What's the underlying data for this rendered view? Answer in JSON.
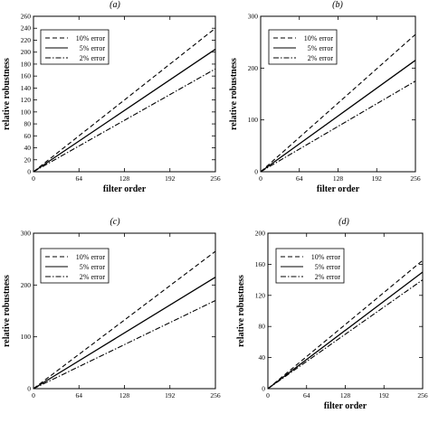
{
  "chart_data": [
    {
      "panel_label": "(a)",
      "type": "line",
      "xlabel": "filter order",
      "ylabel": "relative robustness",
      "xlim": [
        0,
        256
      ],
      "ylim": [
        0,
        260
      ],
      "xticks": [
        0,
        64,
        128,
        192,
        256
      ],
      "yticks": [
        0,
        20,
        40,
        60,
        80,
        100,
        120,
        140,
        160,
        180,
        200,
        220,
        240,
        260
      ],
      "legend_position": "top-left",
      "series": [
        {
          "name": "10% error",
          "style": "dashed",
          "x": [
            0,
            256
          ],
          "y": [
            0,
            240
          ]
        },
        {
          "name": "5% error",
          "style": "solid",
          "x": [
            0,
            256
          ],
          "y": [
            0,
            205
          ]
        },
        {
          "name": "2% error",
          "style": "dashdot",
          "x": [
            0,
            256
          ],
          "y": [
            0,
            172
          ]
        }
      ]
    },
    {
      "panel_label": "(b)",
      "type": "line",
      "xlabel": "filter order",
      "ylabel": "relative robustness",
      "xlim": [
        0,
        256
      ],
      "ylim": [
        0,
        300
      ],
      "xticks": [
        0,
        64,
        128,
        192,
        256
      ],
      "yticks": [
        0,
        100,
        200,
        300
      ],
      "legend_position": "top-left",
      "series": [
        {
          "name": "10% error",
          "style": "dashed",
          "x": [
            0,
            256
          ],
          "y": [
            0,
            265
          ]
        },
        {
          "name": "5% error",
          "style": "solid",
          "x": [
            0,
            256
          ],
          "y": [
            0,
            215
          ]
        },
        {
          "name": "2% error",
          "style": "dashdot",
          "x": [
            0,
            256
          ],
          "y": [
            0,
            175
          ]
        }
      ]
    },
    {
      "panel_label": "(c)",
      "type": "line",
      "xlabel": "",
      "ylabel": "relative robustness",
      "xlim": [
        0,
        256
      ],
      "ylim": [
        0,
        300
      ],
      "xticks": [
        0,
        64,
        128,
        192,
        256
      ],
      "yticks": [
        0,
        100,
        200,
        300
      ],
      "legend_position": "top-left",
      "series": [
        {
          "name": "10% error",
          "style": "dashed",
          "x": [
            0,
            256
          ],
          "y": [
            0,
            265
          ]
        },
        {
          "name": "5% error",
          "style": "solid",
          "x": [
            0,
            256
          ],
          "y": [
            0,
            215
          ]
        },
        {
          "name": "2% error",
          "style": "dashdot",
          "x": [
            0,
            256
          ],
          "y": [
            0,
            170
          ]
        }
      ]
    },
    {
      "panel_label": "(d)",
      "type": "line",
      "xlabel": "filter order",
      "ylabel": "relative robustness",
      "xlim": [
        0,
        256
      ],
      "ylim": [
        0,
        200
      ],
      "xticks": [
        0,
        64,
        128,
        192,
        256
      ],
      "yticks": [
        0,
        40,
        80,
        120,
        160,
        200
      ],
      "legend_position": "top-left",
      "series": [
        {
          "name": "10% error",
          "style": "dashed",
          "x": [
            0,
            256
          ],
          "y": [
            0,
            165
          ]
        },
        {
          "name": "5% error",
          "style": "solid",
          "x": [
            0,
            256
          ],
          "y": [
            0,
            150
          ]
        },
        {
          "name": "2% error",
          "style": "dashdot",
          "x": [
            0,
            256
          ],
          "y": [
            0,
            140
          ]
        }
      ]
    }
  ]
}
